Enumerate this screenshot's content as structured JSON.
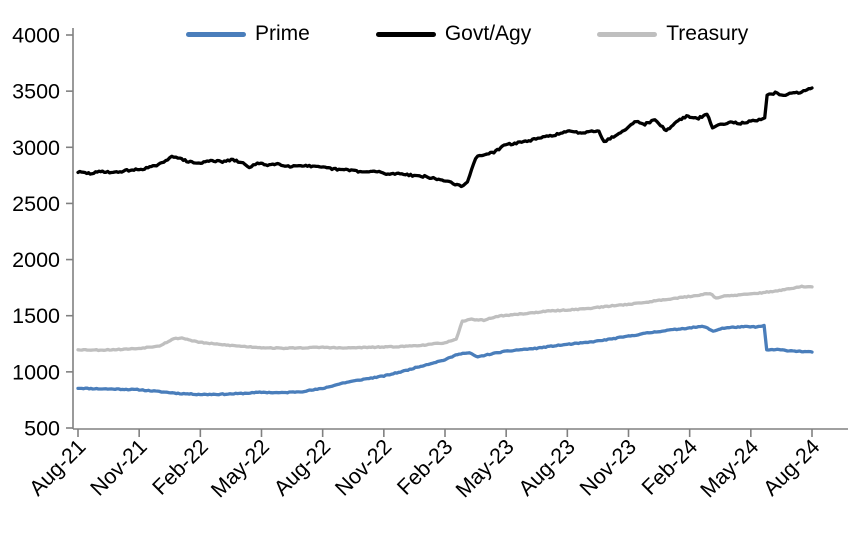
{
  "chart_data": {
    "type": "line",
    "title": "",
    "grid": false,
    "background_color": "#ffffff",
    "axis_line_color": "#808080",
    "legend": {
      "position": "top",
      "items": [
        "Prime",
        "Govt/Agy",
        "Treasury"
      ]
    },
    "x_axis": {
      "tick_labels": [
        "Aug-21",
        "Nov-21",
        "Feb-22",
        "May-22",
        "Aug-22",
        "Nov-22",
        "Feb-23",
        "May-23",
        "Aug-23",
        "Nov-23",
        "Feb-24",
        "May-24",
        "Aug-24"
      ],
      "months_per_tick": 3,
      "months_span": 36,
      "label_rotation_deg": -45
    },
    "y_axis": {
      "tick_labels": [
        "500",
        "1000",
        "1500",
        "2000",
        "2500",
        "3000",
        "3500",
        "4000"
      ],
      "min": 500,
      "max": 4000,
      "tick_step": 500
    },
    "series": [
      {
        "name": "Prime",
        "color": "#4a7ebb",
        "stroke_width": 3.3,
        "noise_amplitude": 4,
        "seed": 11,
        "points": [
          [
            0,
            855
          ],
          [
            1,
            849
          ],
          [
            2,
            846
          ],
          [
            3,
            841
          ],
          [
            4,
            824
          ],
          [
            5,
            807
          ],
          [
            6,
            799
          ],
          [
            7,
            800
          ],
          [
            8,
            807
          ],
          [
            9,
            818
          ],
          [
            10,
            814
          ],
          [
            11,
            825
          ],
          [
            12,
            852
          ],
          [
            13,
            901
          ],
          [
            14,
            934
          ],
          [
            15,
            963
          ],
          [
            16,
            1008
          ],
          [
            17,
            1060
          ],
          [
            18,
            1108
          ],
          [
            18.7,
            1162
          ],
          [
            19.2,
            1168
          ],
          [
            19.6,
            1132
          ],
          [
            20,
            1150
          ],
          [
            20.8,
            1178
          ],
          [
            21.6,
            1196
          ],
          [
            22.4,
            1208
          ],
          [
            23.2,
            1228
          ],
          [
            24,
            1245
          ],
          [
            25,
            1262
          ],
          [
            26,
            1288
          ],
          [
            27,
            1318
          ],
          [
            28,
            1348
          ],
          [
            29,
            1372
          ],
          [
            30,
            1392
          ],
          [
            30.7,
            1405
          ],
          [
            31.15,
            1362
          ],
          [
            31.6,
            1388
          ],
          [
            32.2,
            1398
          ],
          [
            32.8,
            1402
          ],
          [
            33.3,
            1400
          ],
          [
            33.65,
            1410
          ],
          [
            33.78,
            1196
          ],
          [
            34.3,
            1198
          ],
          [
            34.8,
            1190
          ],
          [
            35.4,
            1183
          ],
          [
            36,
            1176
          ]
        ]
      },
      {
        "name": "Govt/Agy",
        "color": "#000000",
        "stroke_width": 3.3,
        "noise_amplitude": 8,
        "seed": 29,
        "points": [
          [
            0,
            2780
          ],
          [
            0.6,
            2766
          ],
          [
            1.2,
            2786
          ],
          [
            1.8,
            2774
          ],
          [
            2.4,
            2794
          ],
          [
            3,
            2802
          ],
          [
            3.6,
            2824
          ],
          [
            4.2,
            2862
          ],
          [
            4.6,
            2926
          ],
          [
            5,
            2898
          ],
          [
            5.5,
            2868
          ],
          [
            6,
            2856
          ],
          [
            6.5,
            2886
          ],
          [
            7,
            2870
          ],
          [
            7.6,
            2888
          ],
          [
            8.1,
            2856
          ],
          [
            8.4,
            2824
          ],
          [
            8.8,
            2856
          ],
          [
            9.3,
            2844
          ],
          [
            9.8,
            2852
          ],
          [
            10.4,
            2830
          ],
          [
            11,
            2840
          ],
          [
            11.6,
            2826
          ],
          [
            12.2,
            2816
          ],
          [
            12.8,
            2800
          ],
          [
            13.4,
            2798
          ],
          [
            14,
            2778
          ],
          [
            14.6,
            2786
          ],
          [
            15.2,
            2760
          ],
          [
            15.8,
            2768
          ],
          [
            16.4,
            2750
          ],
          [
            17,
            2740
          ],
          [
            17.6,
            2716
          ],
          [
            18.2,
            2696
          ],
          [
            18.6,
            2664
          ],
          [
            18.9,
            2652
          ],
          [
            19.1,
            2688
          ],
          [
            19.5,
            2906
          ],
          [
            19.9,
            2938
          ],
          [
            20.4,
            2952
          ],
          [
            20.9,
            3018
          ],
          [
            21.5,
            3038
          ],
          [
            22.2,
            3062
          ],
          [
            22.9,
            3092
          ],
          [
            23.5,
            3116
          ],
          [
            24.1,
            3142
          ],
          [
            24.7,
            3128
          ],
          [
            25.2,
            3148
          ],
          [
            25.55,
            3145
          ],
          [
            25.8,
            3046
          ],
          [
            26.1,
            3080
          ],
          [
            26.7,
            3140
          ],
          [
            27.3,
            3232
          ],
          [
            27.8,
            3206
          ],
          [
            28.3,
            3246
          ],
          [
            28.85,
            3146
          ],
          [
            29.35,
            3228
          ],
          [
            29.85,
            3278
          ],
          [
            30.35,
            3252
          ],
          [
            30.85,
            3296
          ],
          [
            31.12,
            3176
          ],
          [
            31.5,
            3202
          ],
          [
            32,
            3226
          ],
          [
            32.5,
            3214
          ],
          [
            33,
            3230
          ],
          [
            33.4,
            3242
          ],
          [
            33.68,
            3254
          ],
          [
            33.8,
            3462
          ],
          [
            34.2,
            3484
          ],
          [
            34.6,
            3466
          ],
          [
            35,
            3478
          ],
          [
            35.5,
            3492
          ],
          [
            36,
            3528
          ]
        ]
      },
      {
        "name": "Treasury",
        "color": "#bfbfbf",
        "stroke_width": 3.3,
        "noise_amplitude": 4,
        "seed": 53,
        "points": [
          [
            0,
            1198
          ],
          [
            1,
            1194
          ],
          [
            2,
            1199
          ],
          [
            3,
            1209
          ],
          [
            4,
            1233
          ],
          [
            4.7,
            1295
          ],
          [
            5.1,
            1302
          ],
          [
            5.6,
            1278
          ],
          [
            6,
            1262
          ],
          [
            7,
            1243
          ],
          [
            8,
            1228
          ],
          [
            9,
            1216
          ],
          [
            10,
            1210
          ],
          [
            11,
            1214
          ],
          [
            12,
            1219
          ],
          [
            13,
            1212
          ],
          [
            14,
            1217
          ],
          [
            15,
            1221
          ],
          [
            16,
            1227
          ],
          [
            17,
            1239
          ],
          [
            18,
            1260
          ],
          [
            18.55,
            1288
          ],
          [
            18.85,
            1452
          ],
          [
            19.3,
            1468
          ],
          [
            19.9,
            1460
          ],
          [
            20.6,
            1496
          ],
          [
            21.4,
            1510
          ],
          [
            22.2,
            1524
          ],
          [
            23,
            1540
          ],
          [
            23.8,
            1549
          ],
          [
            24.6,
            1558
          ],
          [
            25.4,
            1572
          ],
          [
            26.2,
            1588
          ],
          [
            27,
            1602
          ],
          [
            27.8,
            1618
          ],
          [
            28.6,
            1640
          ],
          [
            29.4,
            1658
          ],
          [
            30.2,
            1676
          ],
          [
            31,
            1700
          ],
          [
            31.3,
            1657
          ],
          [
            31.7,
            1674
          ],
          [
            32.4,
            1684
          ],
          [
            33,
            1694
          ],
          [
            33.7,
            1708
          ],
          [
            34.4,
            1725
          ],
          [
            35,
            1742
          ],
          [
            35.5,
            1760
          ],
          [
            36,
            1757
          ]
        ]
      }
    ]
  }
}
